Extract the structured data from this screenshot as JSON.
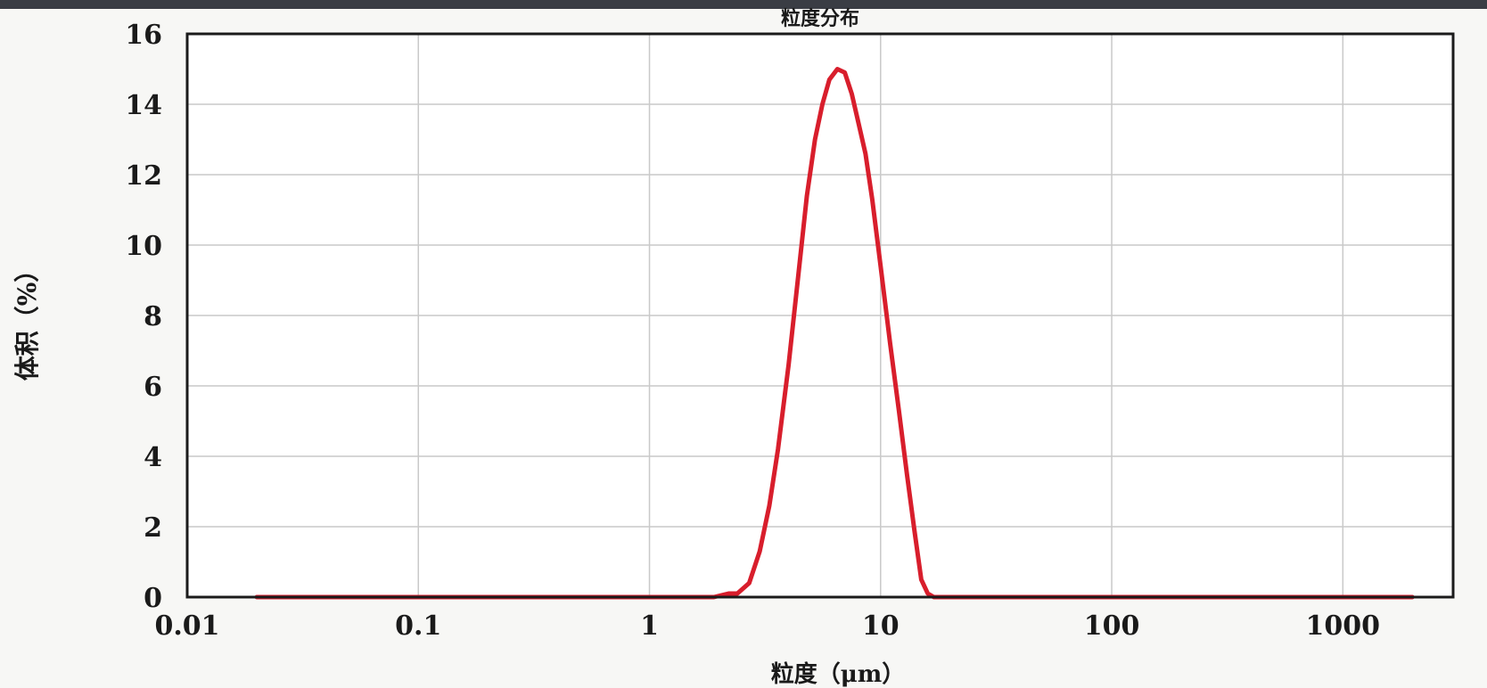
{
  "chart_data": {
    "type": "line",
    "title": "粒度分布",
    "xlabel": "粒度（μm）",
    "ylabel": "体积（%）",
    "x_scale": "log",
    "xlim": [
      0.01,
      3000
    ],
    "ylim": [
      0,
      16
    ],
    "grid": true,
    "x_ticks": [
      "0.01",
      "0.1",
      "1",
      "10",
      "100",
      "1000"
    ],
    "y_ticks": [
      "0",
      "2",
      "4",
      "6",
      "8",
      "10",
      "12",
      "14",
      "16"
    ],
    "series": [
      {
        "color": "#d81e2c",
        "x": [
          0.02,
          0.1,
          0.5,
          1.0,
          1.9,
          2.2,
          2.4,
          2.7,
          3.0,
          3.3,
          3.6,
          4.0,
          4.4,
          4.8,
          5.2,
          5.6,
          6.0,
          6.5,
          7.0,
          7.5,
          8.0,
          8.6,
          9.2,
          10.0,
          11.0,
          12.0,
          13.0,
          14.0,
          15.0,
          16.0,
          17.0,
          18.0,
          20.0,
          25.0,
          50.0,
          100.0,
          500.0,
          1000.0,
          2000.0
        ],
        "y": [
          0,
          0,
          0,
          0,
          0,
          0.1,
          0.1,
          0.4,
          1.3,
          2.6,
          4.2,
          6.6,
          9.1,
          11.4,
          13.0,
          14.0,
          14.7,
          15.0,
          14.9,
          14.3,
          13.5,
          12.6,
          11.3,
          9.4,
          7.2,
          5.3,
          3.5,
          1.9,
          0.5,
          0.1,
          0,
          0,
          0,
          0,
          0,
          0,
          0,
          0,
          0
        ]
      }
    ]
  }
}
